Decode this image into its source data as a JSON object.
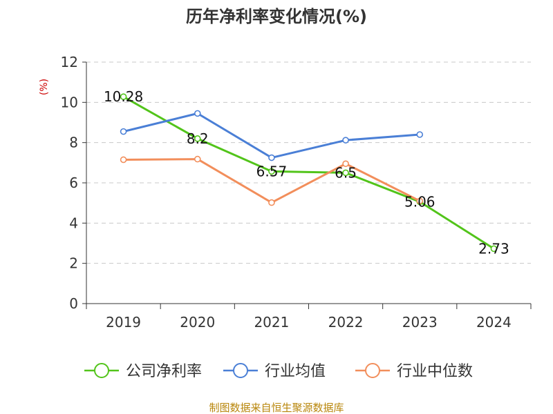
{
  "chart_data": {
    "type": "line",
    "title": "历年净利率变化情况(%)",
    "ylabel": "(%)",
    "xlabel": "",
    "categories": [
      "2019",
      "2020",
      "2021",
      "2022",
      "2023",
      "2024"
    ],
    "ylim": [
      0,
      12
    ],
    "yticks": [
      0,
      2,
      4,
      6,
      8,
      10,
      12
    ],
    "grid": true,
    "legend_position": "bottom",
    "series": [
      {
        "name": "公司净利率",
        "color": "#52c41a",
        "values": [
          10.28,
          8.2,
          6.57,
          6.5,
          5.06,
          2.73
        ],
        "labels": [
          "10.28",
          "8.2",
          "6.57",
          "6.5",
          "5.06",
          "2.73"
        ]
      },
      {
        "name": "行业均值",
        "color": "#4a7fd6",
        "values": [
          8.55,
          9.45,
          7.25,
          8.12,
          8.4,
          null
        ]
      },
      {
        "name": "行业中位数",
        "color": "#f28e5b",
        "values": [
          7.15,
          7.18,
          5.02,
          6.95,
          5.1,
          null
        ]
      }
    ],
    "source": "制图数据来自恒生聚源数据库"
  }
}
